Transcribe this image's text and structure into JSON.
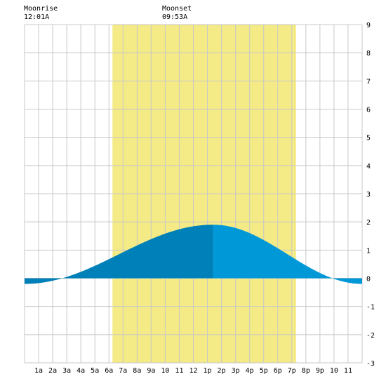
{
  "header": {
    "moonrise_label": "Moonrise",
    "moonrise_time": "12:01A",
    "moonset_label": "Moonset",
    "moonset_time": "09:53A"
  },
  "colors": {
    "background": "#ffffff",
    "daylight": "#f4ea86",
    "grid": "#c8c8c8",
    "tide_falling": "#0198d8",
    "tide_rising": "#0080b8",
    "axis_text": "#000000"
  },
  "chart_data": {
    "type": "area",
    "title": "",
    "xlabel": "",
    "ylabel": "",
    "xlim": [
      0,
      24
    ],
    "ylim": [
      -3,
      9
    ],
    "grid": true,
    "x_ticks": [
      1,
      2,
      3,
      4,
      5,
      6,
      7,
      8,
      9,
      10,
      11,
      12,
      13,
      14,
      15,
      16,
      17,
      18,
      19,
      20,
      21,
      22,
      23
    ],
    "x_tick_labels": [
      "1a",
      "2a",
      "3a",
      "4a",
      "5a",
      "6a",
      "7a",
      "8a",
      "9a",
      "10",
      "11",
      "12",
      "1p",
      "2p",
      "3p",
      "4p",
      "5p",
      "6p",
      "7p",
      "8p",
      "9p",
      "10",
      "11"
    ],
    "y_ticks": [
      -3,
      -2,
      -1,
      0,
      1,
      2,
      3,
      4,
      5,
      6,
      7,
      8,
      9
    ],
    "y_tick_labels": [
      "-3",
      "-2",
      "-1",
      "0",
      "1",
      "2",
      "3",
      "4",
      "5",
      "6",
      "7",
      "8",
      "9"
    ],
    "daylight": {
      "start": 6.25,
      "end": 19.3
    },
    "tide_extremes": [
      {
        "x": 0.0,
        "y": -0.2
      },
      {
        "x": 13.4,
        "y": 1.9
      },
      {
        "x": 24.0,
        "y": -0.2
      }
    ],
    "rising_until": 13.4
  }
}
